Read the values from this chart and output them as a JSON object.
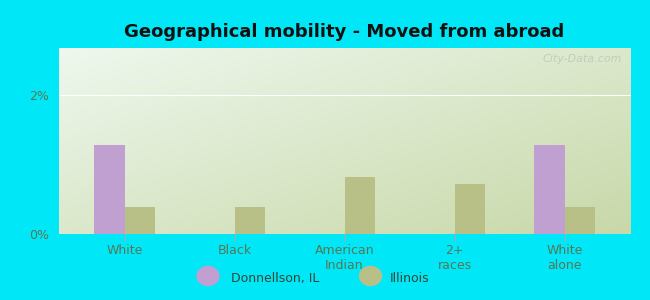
{
  "title": "Geographical mobility - Moved from abroad",
  "categories": [
    "White",
    "Black",
    "American\nIndian",
    "2+\nraces",
    "White\nalone"
  ],
  "donnellson_values": [
    1.28,
    0.0,
    0.0,
    0.0,
    1.28
  ],
  "illinois_values": [
    0.38,
    0.38,
    0.82,
    0.72,
    0.38
  ],
  "bar_color_donnellson": "#c0a0d0",
  "bar_color_illinois": "#b8c088",
  "background_color_outer": "#00e8f8",
  "grad_top_left": "#eef8ee",
  "grad_bottom_right": "#c8d8a8",
  "ylim": [
    0,
    2.667
  ],
  "ytick_vals": [
    0,
    2
  ],
  "ytick_labels": [
    "0%",
    "2%"
  ],
  "bar_width": 0.28,
  "legend_donnellson": "Donnellson, IL",
  "legend_illinois": "Illinois",
  "watermark": "City-Data.com",
  "title_fontsize": 13,
  "tick_fontsize": 9,
  "legend_fontsize": 9
}
